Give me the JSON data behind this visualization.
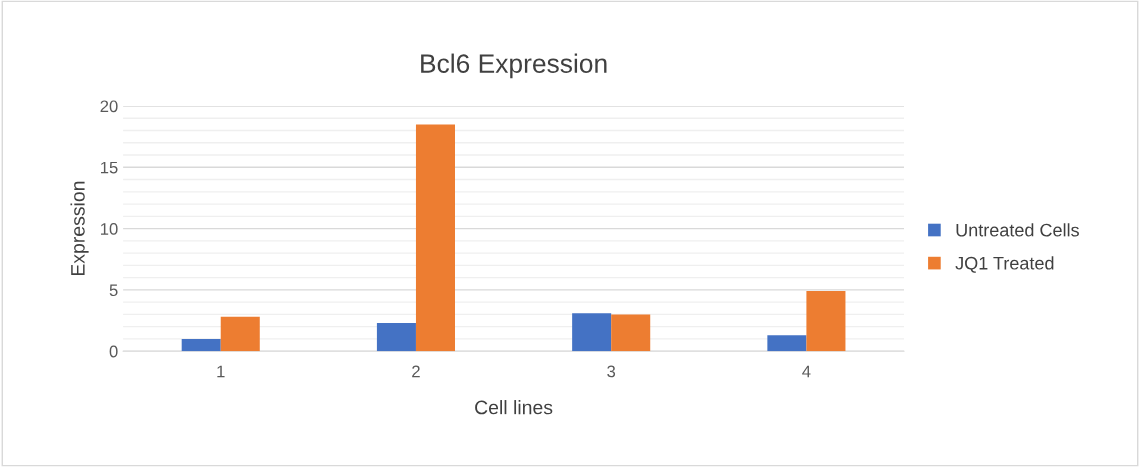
{
  "chart_data": {
    "type": "bar",
    "title": "Bcl6 Expression",
    "xlabel": "Cell lines",
    "ylabel": "Expression",
    "categories": [
      "1",
      "2",
      "3",
      "4"
    ],
    "series": [
      {
        "name": "Untreated Cells",
        "color": "#4472c4",
        "values": [
          1.0,
          2.3,
          3.1,
          1.3
        ]
      },
      {
        "name": "JQ1 Treated",
        "color": "#ed7d31",
        "values": [
          2.8,
          18.5,
          3.0,
          4.9
        ]
      }
    ],
    "ylim": [
      0,
      20
    ],
    "yticks": [
      0,
      {
        "value": 1,
        "label": null
      },
      {
        "value": 2,
        "label": null
      },
      {
        "value": 3,
        "label": null
      },
      {
        "value": 4,
        "label": null
      },
      5,
      {
        "value": 6,
        "label": null
      },
      {
        "value": 7,
        "label": null
      },
      {
        "value": 8,
        "label": null
      },
      {
        "value": 9,
        "label": null
      },
      10,
      {
        "value": 11,
        "label": null
      },
      {
        "value": 12,
        "label": null
      },
      {
        "value": 13,
        "label": null
      },
      {
        "value": 14,
        "label": null
      },
      15,
      {
        "value": 16,
        "label": null
      },
      {
        "value": 17,
        "label": null
      },
      {
        "value": 18,
        "label": null
      },
      {
        "value": 19,
        "label": null
      },
      20
    ],
    "grid": "y",
    "legend": "right"
  }
}
